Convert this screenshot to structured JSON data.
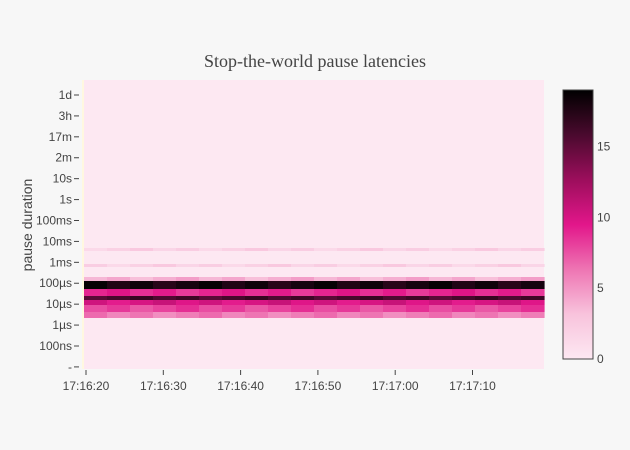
{
  "chart_data": {
    "type": "heatmap",
    "title": "Stop-the-world pause latencies",
    "ylabel": "pause duration",
    "xlabel": "",
    "x_tick_labels": [
      "17:16:20",
      "17:16:30",
      "17:16:40",
      "17:16:50",
      "17:17:00",
      "17:17:10"
    ],
    "y_tick_labels": [
      "1d",
      "3h",
      "17m",
      "2m",
      "10s",
      "1s",
      "100ms",
      "10ms",
      "1ms",
      "100µs",
      "10µs",
      "1µs",
      "100ns",
      "-"
    ],
    "x_range": [
      "17:16:20",
      "17:17:19"
    ],
    "colorbar": {
      "min": 0,
      "max": 19,
      "ticks": [
        0,
        5,
        10,
        15
      ]
    },
    "colorscale": [
      "#fde8f2",
      "#f8c3dc",
      "#ee75b3",
      "#e2168a",
      "#9c0e5c",
      "#4a0a2e",
      "#000000"
    ],
    "band_rows": [
      {
        "range": [
          "1ms",
          "10ms"
        ],
        "level": 2
      },
      {
        "range": [
          "1ms",
          "1ms"
        ],
        "level": 2
      },
      {
        "range": [
          "100µs",
          "1ms"
        ],
        "level": 4
      },
      {
        "range": [
          "100µs",
          "100µs"
        ],
        "level": 18
      },
      {
        "range": [
          "10µs",
          "100µs"
        ],
        "level": 9
      },
      {
        "range": [
          "10µs",
          "100µs"
        ],
        "level": 16
      },
      {
        "range": [
          "10µs",
          "10µs"
        ],
        "level": 10
      },
      {
        "range": [
          "1µs",
          "10µs"
        ],
        "level": 8
      },
      {
        "range": [
          "1µs",
          "10µs"
        ],
        "level": 6
      }
    ]
  }
}
